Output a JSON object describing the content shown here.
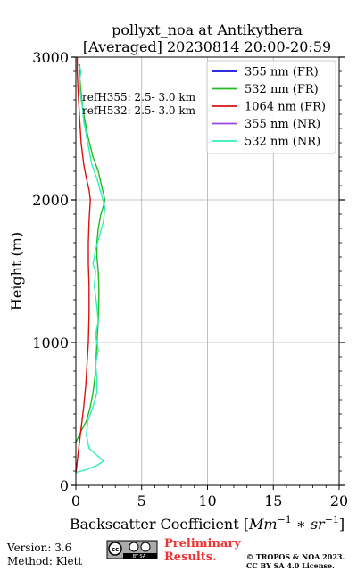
{
  "chart_data": {
    "type": "line",
    "title_line1": "pollyxt_noa at Antikythera",
    "title_line2": "[Averaged] 20230814 20:00-20:59",
    "xlabel_prefix": "Backscatter Coefficient [",
    "xlabel_math": "Mm",
    "xlabel_exp1": "−1",
    "xlabel_mid": " ∗ ",
    "xlabel_sr": "sr",
    "xlabel_exp2": "−1",
    "xlabel_suffix": "]",
    "ylabel": "Height (m)",
    "xlim": [
      0,
      20
    ],
    "ylim": [
      0,
      3000
    ],
    "x_ticks": [
      0,
      5,
      10,
      15,
      20
    ],
    "y_ticks": [
      0,
      1000,
      2000,
      3000
    ],
    "grid": true,
    "legend_position": "top-right",
    "annotations": [
      "refH355:  2.5- 3.0 km",
      "refH532:  2.5- 3.0 km"
    ],
    "series": [
      {
        "name": "355 nm (FR)",
        "color": "#1010dd",
        "x": [],
        "y": []
      },
      {
        "name": "532 nm (FR)",
        "color": "#22bb22",
        "x": [
          0.0,
          0.4,
          0.8,
          1.1,
          1.3,
          1.5,
          1.6,
          1.7,
          1.75,
          1.75,
          1.7,
          1.6,
          1.6,
          1.7,
          1.9,
          2.1,
          2.2,
          2.0,
          1.7,
          1.3,
          0.9,
          0.7,
          0.5,
          0.4,
          0.3,
          0.3
        ],
        "y": [
          300,
          380,
          450,
          550,
          650,
          800,
          1000,
          1150,
          1300,
          1400,
          1500,
          1600,
          1700,
          1800,
          1900,
          1960,
          2000,
          2080,
          2200,
          2300,
          2450,
          2550,
          2650,
          2750,
          2850,
          2950
        ]
      },
      {
        "name": "1064 nm (FR)",
        "color": "#dd1111",
        "x": [
          0.0,
          0.2,
          0.4,
          0.6,
          0.75,
          0.85,
          0.95,
          1.0,
          1.0,
          0.95,
          0.95,
          1.0,
          1.1,
          1.0,
          0.8,
          0.6,
          0.4,
          0.3,
          0.2,
          0.15,
          0.1,
          0.1
        ],
        "y": [
          80,
          250,
          400,
          550,
          700,
          850,
          1000,
          1200,
          1400,
          1550,
          1700,
          1850,
          2000,
          2070,
          2150,
          2250,
          2400,
          2550,
          2700,
          2800,
          2900,
          3000
        ]
      },
      {
        "name": "355 nm (NR)",
        "color": "#9944dd",
        "x": [],
        "y": []
      },
      {
        "name": "532 nm (NR)",
        "color": "#33eebb",
        "x": [
          0.0,
          0.8,
          1.6,
          2.1,
          1.6,
          1.0,
          0.8,
          0.9,
          1.3,
          1.6,
          1.6,
          1.5,
          1.7,
          1.5,
          1.7,
          1.6,
          1.4,
          1.5,
          1.3,
          1.5,
          1.8,
          2.1,
          2.2,
          1.9,
          1.6,
          1.2,
          1.0,
          0.8,
          0.6,
          0.5,
          0.4,
          0.3,
          0.3,
          0.4,
          0.2
        ],
        "y": [
          90,
          110,
          140,
          170,
          210,
          260,
          350,
          450,
          550,
          650,
          750,
          850,
          950,
          1050,
          1150,
          1250,
          1400,
          1500,
          1550,
          1650,
          1750,
          1850,
          1950,
          2050,
          2150,
          2250,
          2350,
          2450,
          2550,
          2650,
          2700,
          2780,
          2850,
          2900,
          2950
        ]
      }
    ]
  },
  "footer": {
    "version": "Version: 3.6",
    "method": "Method: Klett",
    "preliminary_line1": "Preliminary",
    "preliminary_line2": "Results.",
    "copyright_line1": "© TROPOS & NOA 2023.",
    "copyright_line2": "CC BY SA 4.0 License.",
    "license_badge_text": "BY   SA",
    "license_icon_text": "cc",
    "colors": {
      "preliminary": "#ee3333"
    }
  }
}
